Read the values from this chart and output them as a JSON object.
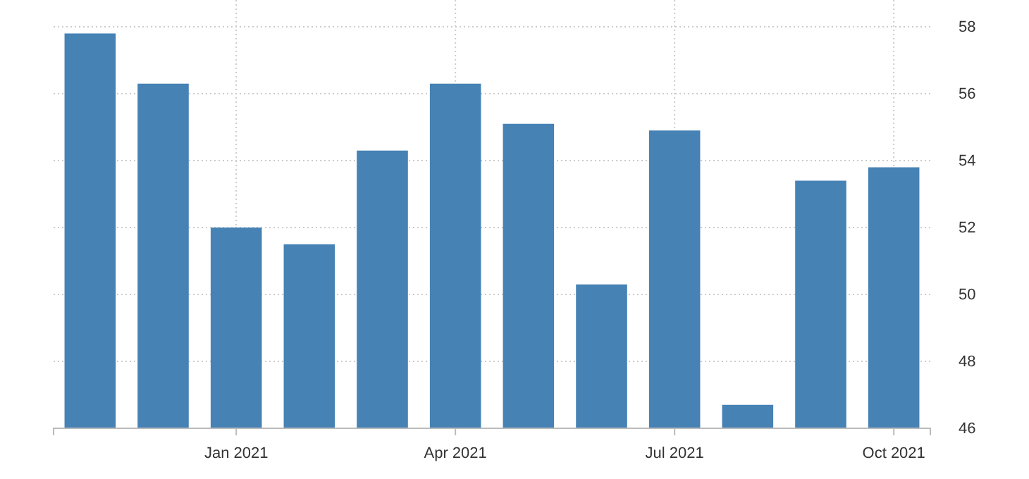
{
  "chart_data": {
    "type": "bar",
    "categories": [
      null,
      null,
      "Jan 2021",
      null,
      null,
      "Apr 2021",
      null,
      null,
      "Jul 2021",
      null,
      null,
      "Oct 2021"
    ],
    "values": [
      57.8,
      56.3,
      52.0,
      51.5,
      54.3,
      56.3,
      55.1,
      50.3,
      54.9,
      46.7,
      53.4,
      53.8
    ],
    "color": "#4682b4",
    "ylim": [
      46,
      58
    ],
    "yticks": [
      46,
      48,
      50,
      52,
      54,
      56,
      58
    ],
    "grid": true
  }
}
